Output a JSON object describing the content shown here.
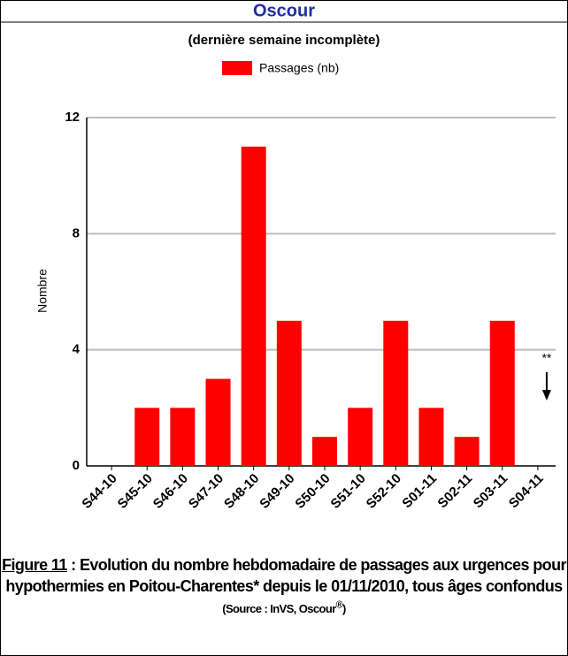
{
  "chart_data": {
    "type": "bar",
    "title": "Oscour",
    "subtitle": "(dernière semaine incomplète)",
    "y_label": "Nombre",
    "categories": [
      "S44-10",
      "S45-10",
      "S46-10",
      "S47-10",
      "S48-10",
      "S49-10",
      "S50-10",
      "S51-10",
      "S52-10",
      "S01-11",
      "S02-11",
      "S03-11",
      "S04-11"
    ],
    "series": [
      {
        "name": "Passages (nb)",
        "color": "#ff0000",
        "values": [
          0,
          2,
          2,
          3,
          11,
          5,
          1,
          2,
          5,
          2,
          1,
          5,
          0
        ]
      }
    ],
    "ylim": [
      0,
      12
    ],
    "yticks": [
      0,
      4,
      8,
      12
    ],
    "grid": true,
    "legend": "top",
    "annotation": "**"
  },
  "caption": {
    "figure": "Figure 11",
    "text": " : Evolution du nombre hebdomadaire de passages aux urgences pour hypothermies en Poitou-Charentes* depuis le 01/11/2010, tous âges confondus",
    "source": "(Source : InVS, Oscour",
    "source_mark": "®",
    "source_end": ")"
  }
}
